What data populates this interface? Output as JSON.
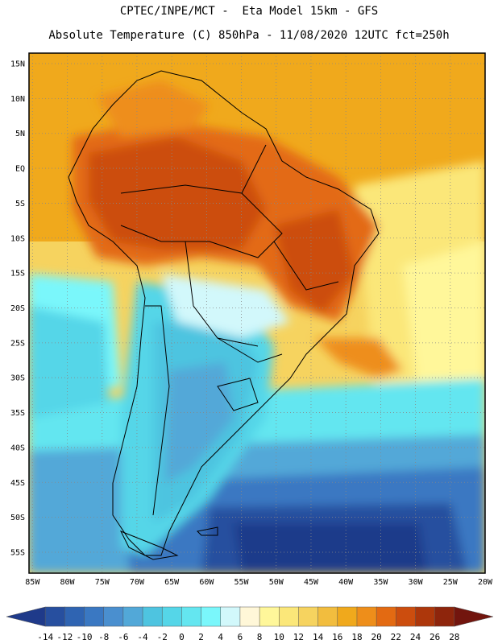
{
  "header": {
    "title_line1": "CPTEC/INPE/MCT -  Eta Model 15km - GFS",
    "title_line2": "Absolute Temperature (C) 850hPa - 11/08/2020 12UTC fct=250h"
  },
  "map": {
    "lat_labels": [
      "15N",
      "10N",
      "5N",
      "EQ",
      "5S",
      "10S",
      "15S",
      "20S",
      "25S",
      "30S",
      "35S",
      "40S",
      "45S",
      "50S",
      "55S"
    ],
    "lon_labels": [
      "85W",
      "80W",
      "75W",
      "70W",
      "65W",
      "60W",
      "55W",
      "50W",
      "45W",
      "40W",
      "35W",
      "30W",
      "25W",
      "20W"
    ],
    "lat_values": [
      15,
      10,
      5,
      0,
      -5,
      -10,
      -15,
      -20,
      -25,
      -30,
      -35,
      -40,
      -45,
      -50,
      -55
    ],
    "lon_values": [
      -85,
      -80,
      -75,
      -70,
      -65,
      -60,
      -55,
      -50,
      -45,
      -40,
      -35,
      -30,
      -25,
      -20
    ],
    "extent": {
      "lon_min": -85.5,
      "lon_max": -20,
      "lat_min": -58,
      "lat_max": 16.5
    }
  },
  "colorbar": {
    "labels": [
      "-14",
      "-12",
      "-10",
      "-8",
      "-6",
      "-4",
      "-2",
      "0",
      "2",
      "4",
      "6",
      "8",
      "10",
      "12",
      "14",
      "16",
      "18",
      "20",
      "22",
      "24",
      "26",
      "28"
    ],
    "colors": [
      "#1f3a8a",
      "#274f9f",
      "#2f64b2",
      "#3a78c2",
      "#4a8fcf",
      "#52a8d8",
      "#4ec4e0",
      "#55d6e8",
      "#64e6f0",
      "#7af7fb",
      "#d2f8fb",
      "#fff7d8",
      "#fff79a",
      "#fbe779",
      "#f6d35f",
      "#f2bd3e",
      "#f0a91c",
      "#ee8e1a",
      "#e36a12",
      "#cc4d0e",
      "#ad370b",
      "#8e250c",
      "#72150e"
    ]
  }
}
